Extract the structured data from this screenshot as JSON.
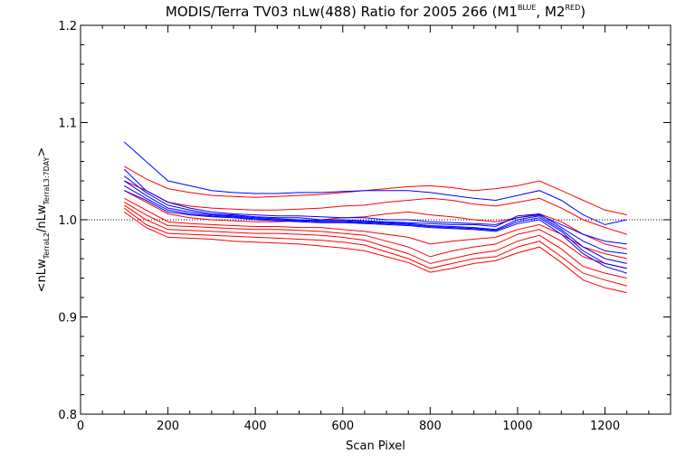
{
  "chart_data": {
    "type": "line",
    "title": {
      "main": "MODIS/Terra TV03 nLw(488) Ratio for 2005 266 (M1",
      "sup1": "BLUE",
      "mid": ", M2",
      "sup2": "RED",
      "end": ")"
    },
    "xlabel": "Scan Pixel",
    "ylabel": {
      "part1": "<nLw",
      "sub1": "TerraL2",
      "part2": "/nLw",
      "sub2": "TerraL3:7DAY",
      "part3": ">"
    },
    "xlim": [
      0,
      1350
    ],
    "ylim": [
      0.8,
      1.2
    ],
    "x_ticks": [
      0,
      200,
      400,
      600,
      800,
      1000,
      1200
    ],
    "y_ticks": [
      0.8,
      0.9,
      1.0,
      1.1,
      1.2
    ],
    "x_tick_labels": [
      "0",
      "200",
      "400",
      "600",
      "800",
      "1000",
      "1200"
    ],
    "y_tick_labels": [
      "0.8",
      "0.9",
      "1.0",
      "1.1",
      "1.2"
    ],
    "reference_line": {
      "y": 1.0,
      "style": "dotted",
      "color": "#000000"
    },
    "colors": {
      "M1": "#0000ff",
      "M2": "#ff0000"
    },
    "x": [
      100,
      150,
      200,
      250,
      300,
      350,
      400,
      450,
      500,
      550,
      600,
      650,
      700,
      750,
      800,
      850,
      900,
      950,
      1000,
      1050,
      1100,
      1150,
      1200,
      1250
    ],
    "series": [
      {
        "group": "M1",
        "values": [
          1.08,
          1.06,
          1.04,
          1.035,
          1.03,
          1.028,
          1.027,
          1.027,
          1.028,
          1.028,
          1.029,
          1.03,
          1.03,
          1.03,
          1.028,
          1.025,
          1.022,
          1.02,
          1.025,
          1.03,
          1.02,
          1.005,
          0.995,
          1.0
        ]
      },
      {
        "group": "M1",
        "values": [
          1.052,
          1.03,
          1.018,
          1.012,
          1.008,
          1.006,
          1.005,
          1.004,
          1.004,
          1.003,
          1.002,
          1.002,
          1.0,
          1.0,
          0.998,
          0.997,
          0.996,
          0.995,
          1.002,
          1.005,
          0.995,
          0.985,
          0.978,
          0.975
        ]
      },
      {
        "group": "M1",
        "values": [
          1.045,
          1.028,
          1.015,
          1.01,
          1.006,
          1.005,
          1.003,
          1.002,
          1.002,
          1.0,
          1.0,
          0.999,
          0.998,
          0.997,
          0.996,
          0.995,
          0.995,
          0.993,
          1.004,
          1.006,
          0.992,
          0.978,
          0.968,
          0.965
        ]
      },
      {
        "group": "M1",
        "values": [
          1.04,
          1.025,
          1.012,
          1.008,
          1.005,
          1.004,
          1.002,
          1.001,
          1.0,
          0.999,
          0.999,
          0.998,
          0.997,
          0.996,
          0.994,
          0.993,
          0.992,
          0.99,
          1.0,
          1.004,
          0.99,
          0.972,
          0.96,
          0.955
        ]
      },
      {
        "group": "M1",
        "values": [
          1.035,
          1.022,
          1.01,
          1.006,
          1.004,
          1.003,
          1.001,
          1.0,
          0.999,
          0.998,
          0.998,
          0.997,
          0.996,
          0.995,
          0.993,
          0.992,
          0.991,
          0.989,
          0.998,
          1.002,
          0.988,
          0.968,
          0.955,
          0.95
        ]
      },
      {
        "group": "M1",
        "values": [
          1.03,
          1.02,
          1.008,
          1.005,
          1.003,
          1.002,
          1.0,
          0.999,
          0.998,
          0.997,
          0.997,
          0.996,
          0.995,
          0.994,
          0.992,
          0.991,
          0.99,
          0.988,
          0.996,
          1.0,
          0.985,
          0.965,
          0.952,
          0.945
        ]
      },
      {
        "group": "M2",
        "values": [
          1.055,
          1.042,
          1.032,
          1.028,
          1.025,
          1.024,
          1.023,
          1.024,
          1.025,
          1.026,
          1.028,
          1.03,
          1.032,
          1.034,
          1.035,
          1.033,
          1.03,
          1.032,
          1.035,
          1.04,
          1.03,
          1.02,
          1.01,
          1.005
        ]
      },
      {
        "group": "M2",
        "values": [
          1.04,
          1.03,
          1.018,
          1.014,
          1.012,
          1.011,
          1.01,
          1.01,
          1.011,
          1.012,
          1.014,
          1.015,
          1.018,
          1.02,
          1.022,
          1.02,
          1.016,
          1.014,
          1.018,
          1.022,
          1.012,
          1.0,
          0.992,
          0.985
        ]
      },
      {
        "group": "M2",
        "values": [
          1.03,
          1.018,
          1.006,
          1.002,
          1.0,
          0.999,
          0.998,
          0.998,
          0.999,
          1.0,
          1.002,
          1.003,
          1.006,
          1.008,
          1.005,
          1.003,
          1.0,
          0.998,
          1.002,
          1.006,
          0.998,
          0.985,
          0.975,
          0.97
        ]
      },
      {
        "group": "M2",
        "values": [
          1.022,
          1.01,
          0.998,
          0.996,
          0.995,
          0.994,
          0.993,
          0.993,
          0.992,
          0.992,
          0.99,
          0.988,
          0.985,
          0.982,
          0.975,
          0.978,
          0.98,
          0.982,
          0.99,
          0.995,
          0.985,
          0.972,
          0.965,
          0.96
        ]
      },
      {
        "group": "M2",
        "values": [
          1.018,
          1.005,
          0.994,
          0.993,
          0.992,
          0.991,
          0.99,
          0.99,
          0.989,
          0.988,
          0.986,
          0.984,
          0.978,
          0.972,
          0.962,
          0.968,
          0.972,
          0.975,
          0.985,
          0.99,
          0.978,
          0.962,
          0.955,
          0.95
        ]
      },
      {
        "group": "M2",
        "values": [
          1.015,
          1.0,
          0.99,
          0.989,
          0.988,
          0.987,
          0.986,
          0.986,
          0.985,
          0.984,
          0.982,
          0.979,
          0.972,
          0.965,
          0.955,
          0.96,
          0.965,
          0.968,
          0.978,
          0.984,
          0.97,
          0.952,
          0.945,
          0.94
        ]
      },
      {
        "group": "M2",
        "values": [
          1.012,
          0.995,
          0.986,
          0.985,
          0.984,
          0.983,
          0.982,
          0.981,
          0.98,
          0.979,
          0.977,
          0.974,
          0.967,
          0.96,
          0.95,
          0.955,
          0.96,
          0.962,
          0.972,
          0.978,
          0.962,
          0.945,
          0.938,
          0.932
        ]
      },
      {
        "group": "M2",
        "values": [
          1.008,
          0.992,
          0.982,
          0.981,
          0.98,
          0.978,
          0.977,
          0.976,
          0.975,
          0.973,
          0.971,
          0.968,
          0.962,
          0.956,
          0.946,
          0.95,
          0.955,
          0.958,
          0.966,
          0.972,
          0.956,
          0.938,
          0.93,
          0.925
        ]
      }
    ]
  }
}
